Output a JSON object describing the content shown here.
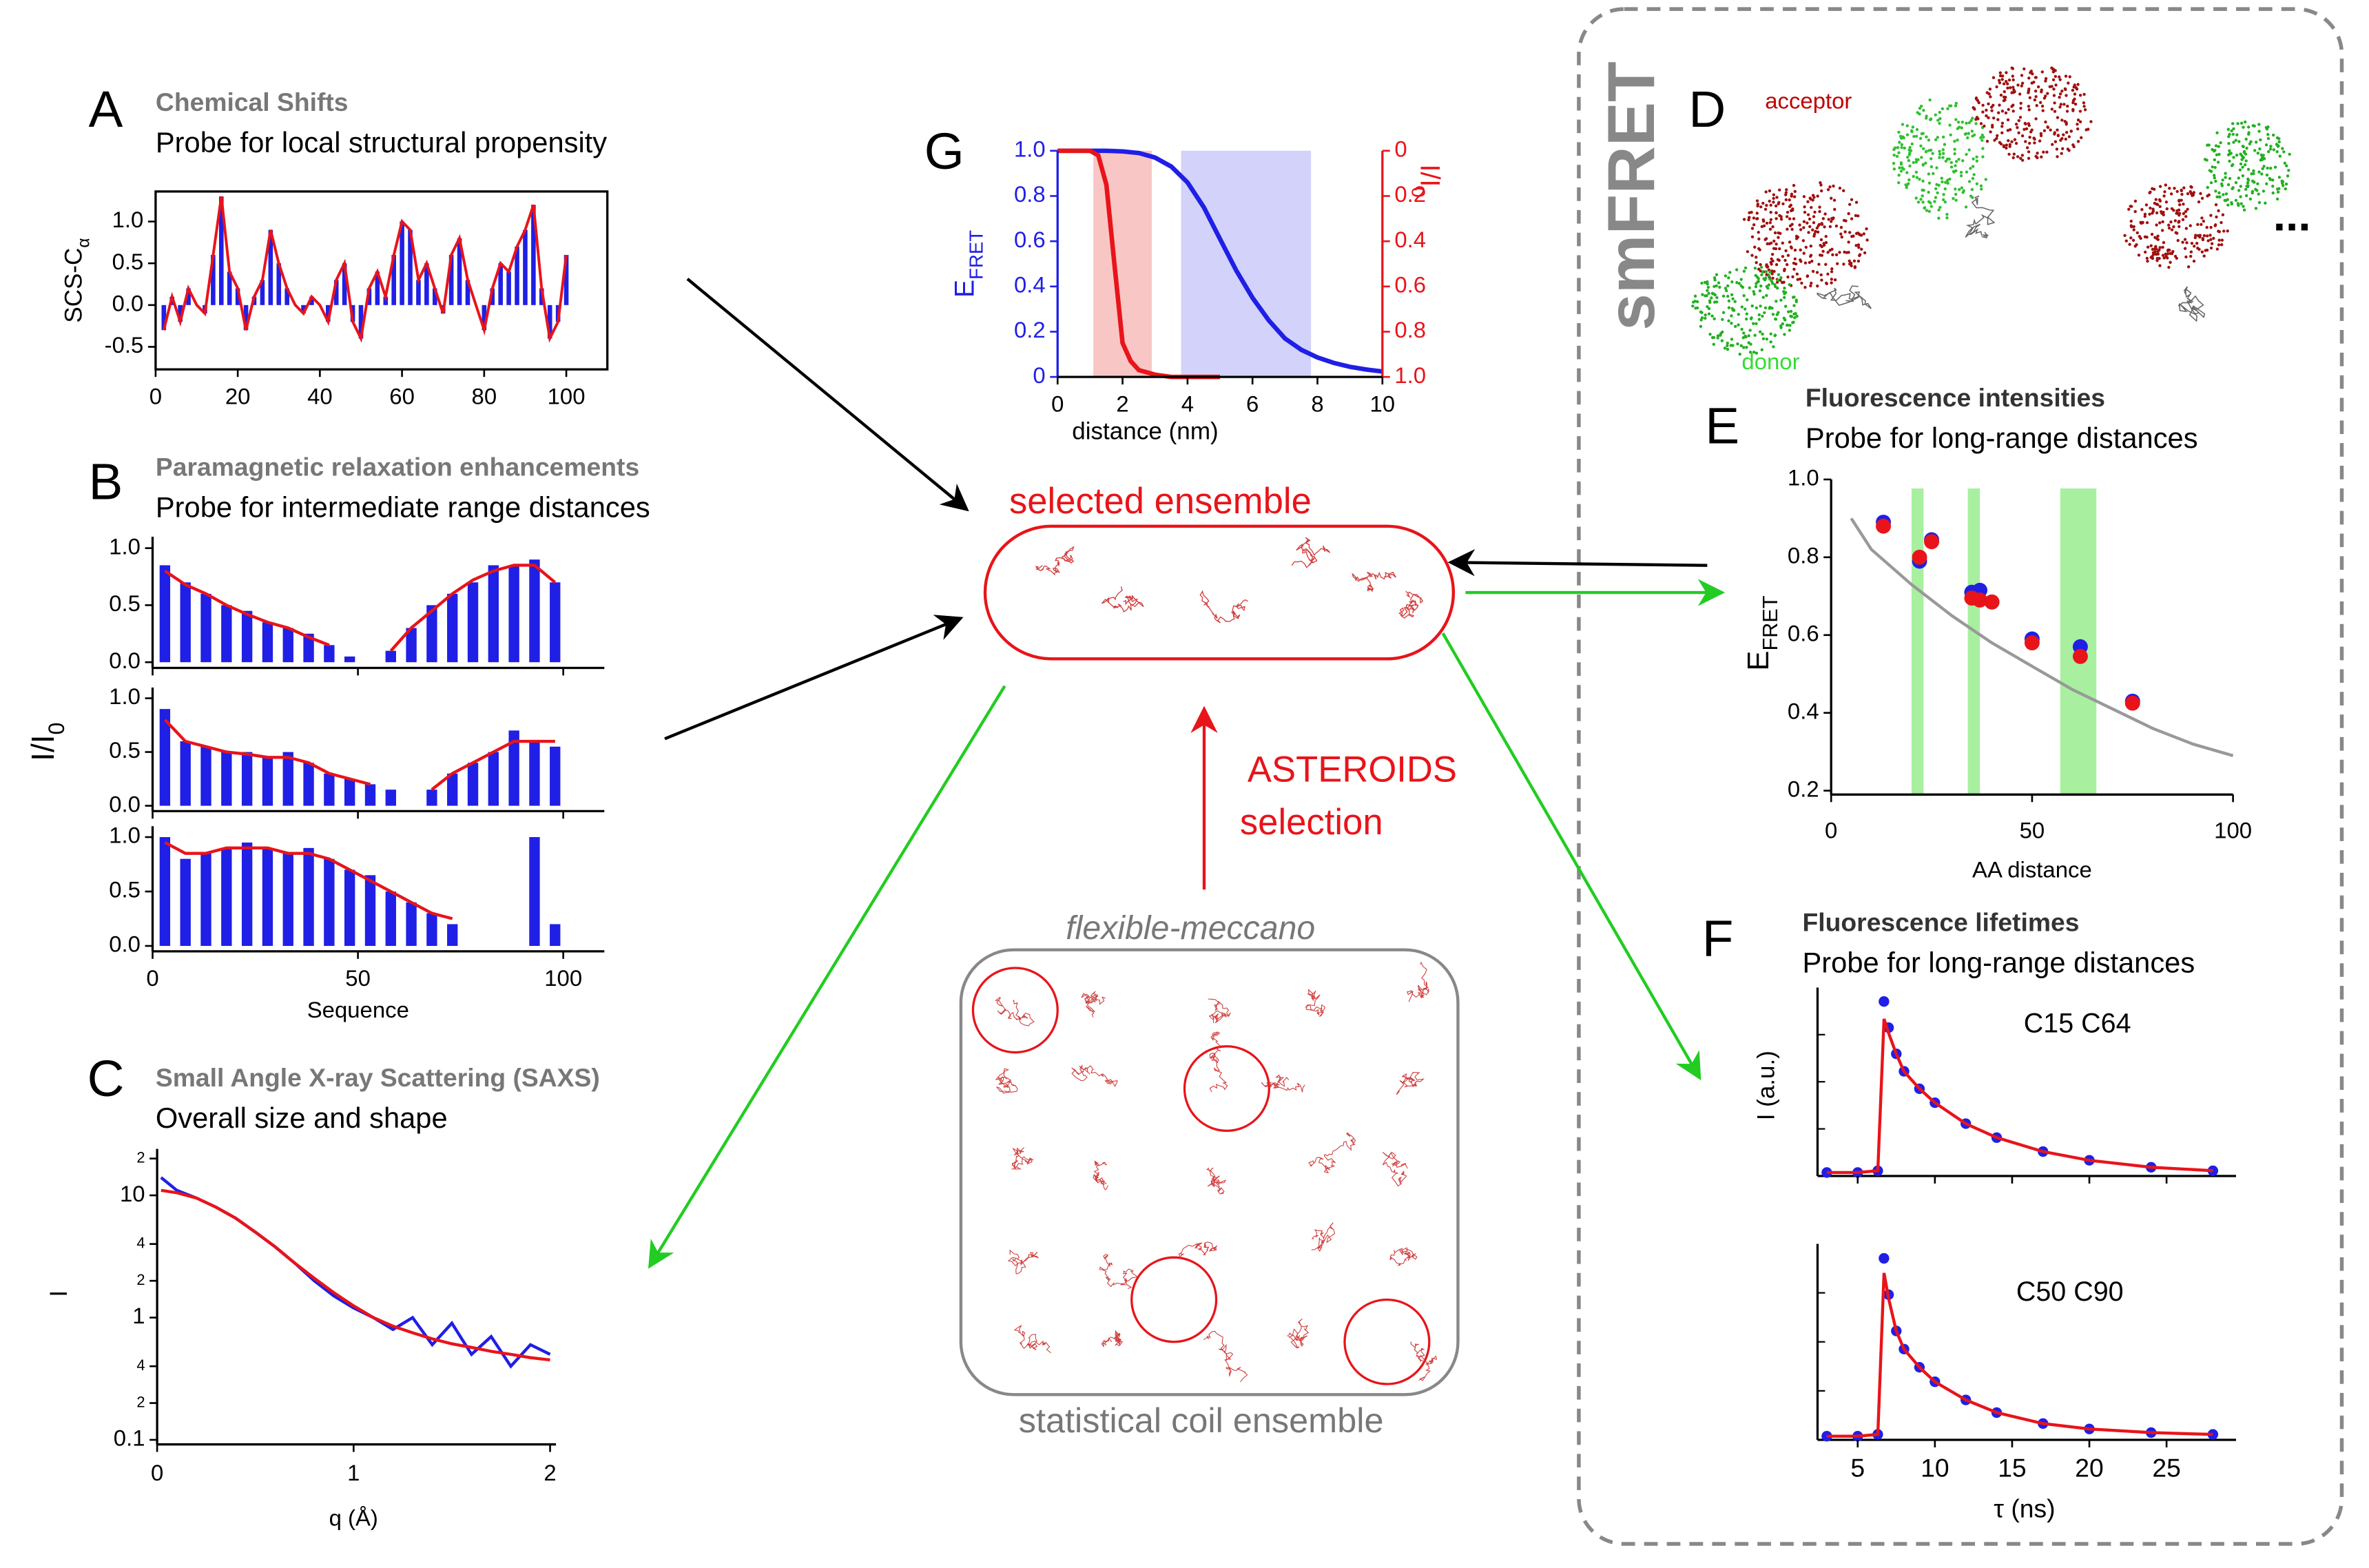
{
  "figure": {
    "A": {
      "letter": "A",
      "title": "Chemical Shifts",
      "subtitle": "Probe for local structural propensity",
      "ylabel": "SCS-C",
      "ylabel_sub": "α",
      "xlim": [
        0,
        110
      ],
      "ylim": [
        -0.77,
        1.36
      ],
      "xticks": [
        0,
        20,
        40,
        60,
        80,
        100
      ],
      "yticks": [
        {
          "value": -0.5,
          "label": "-0.5"
        },
        {
          "value": 0,
          "label": "0.0"
        },
        {
          "value": 0.5,
          "label": "0.5"
        },
        {
          "value": 1,
          "label": "1.0"
        }
      ],
      "x": [
        2,
        4,
        6,
        8,
        10,
        12,
        14,
        16,
        18,
        20,
        22,
        24,
        26,
        28,
        30,
        32,
        34,
        36,
        38,
        40,
        42,
        44,
        46,
        48,
        50,
        52,
        54,
        56,
        58,
        60,
        62,
        64,
        66,
        68,
        70,
        72,
        74,
        76,
        78,
        80,
        82,
        84,
        86,
        88,
        90,
        92,
        94,
        96,
        98,
        100
      ],
      "values": [
        -0.3,
        0.1,
        -0.2,
        0.2,
        0.0,
        -0.1,
        0.6,
        1.3,
        0.4,
        0.2,
        -0.3,
        0.1,
        0.3,
        0.9,
        0.5,
        0.2,
        0.0,
        -0.1,
        0.1,
        0.0,
        -0.2,
        0.3,
        0.5,
        -0.2,
        -0.4,
        0.2,
        0.4,
        0.1,
        0.6,
        1.0,
        0.9,
        0.3,
        0.5,
        0.2,
        -0.1,
        0.6,
        0.8,
        0.3,
        0.0,
        -0.3,
        0.2,
        0.5,
        0.4,
        0.7,
        0.9,
        1.2,
        0.2,
        -0.4,
        -0.2,
        0.6
      ],
      "bar_color": "#1f1fe6",
      "line_color": "#e8141a"
    },
    "B": {
      "letter": "B",
      "title": "Paramagnetic relaxation enhancements",
      "subtitle": "Probe for intermediate range distances",
      "ylabel": "I/I",
      "ylabel_sub": "0",
      "xlabel": "Sequence",
      "xlim": [
        0,
        110
      ],
      "ylim": [
        -0.05,
        1.1
      ],
      "xticks": [
        0,
        50,
        100
      ],
      "yticks": [
        {
          "value": 0,
          "label": "0.0"
        },
        {
          "value": 0.5,
          "label": "0.5"
        },
        {
          "value": 1,
          "label": "1.0"
        }
      ],
      "x": [
        3,
        8,
        13,
        18,
        23,
        28,
        33,
        38,
        43,
        48,
        53,
        58,
        63,
        68,
        73,
        78,
        83,
        88,
        93,
        98
      ],
      "subplots": [
        {
          "values": [
            0.85,
            0.7,
            0.6,
            0.5,
            0.45,
            0.35,
            0.3,
            0.25,
            0.15,
            0.05,
            null,
            0.1,
            0.3,
            0.5,
            0.6,
            0.7,
            0.85,
            0.85,
            0.9,
            0.7
          ],
          "fit": [
            0.8,
            0.68,
            0.6,
            0.5,
            0.42,
            0.35,
            0.3,
            0.22,
            0.15,
            null,
            null,
            0.1,
            0.3,
            0.45,
            0.6,
            0.72,
            0.8,
            0.85,
            0.85,
            0.7
          ]
        },
        {
          "values": [
            0.9,
            0.6,
            0.55,
            0.5,
            0.5,
            0.45,
            0.5,
            0.4,
            0.3,
            0.25,
            0.2,
            0.15,
            null,
            0.15,
            0.3,
            0.4,
            0.5,
            0.7,
            0.6,
            0.55
          ],
          "fit": [
            0.8,
            0.6,
            0.55,
            0.5,
            0.48,
            0.45,
            0.45,
            0.4,
            0.3,
            0.25,
            0.2,
            null,
            null,
            0.15,
            0.3,
            0.4,
            0.5,
            0.6,
            0.6,
            0.6
          ]
        },
        {
          "values": [
            1.0,
            0.8,
            0.85,
            0.9,
            0.95,
            0.9,
            0.85,
            0.9,
            0.8,
            0.7,
            0.65,
            0.5,
            0.4,
            0.3,
            0.2,
            null,
            null,
            null,
            1.0,
            0.2
          ],
          "fit": [
            0.95,
            0.85,
            0.85,
            0.9,
            0.9,
            0.9,
            0.85,
            0.85,
            0.8,
            0.7,
            0.6,
            0.5,
            0.4,
            0.3,
            0.25,
            null,
            null,
            null,
            null,
            null
          ]
        }
      ]
    },
    "C": {
      "letter": "C",
      "title": "Small Angle X-ray Scattering (SAXS)",
      "subtitle": "Overall size and shape",
      "ylabel": "I",
      "xlabel": "q (Å)",
      "xlim": [
        0,
        2.03
      ],
      "ylim": [
        0.1,
        24
      ],
      "ylog": true,
      "xticks": [
        0,
        1,
        2
      ],
      "yticks": [
        0.1,
        {
          "value": 0.2,
          "label": "2"
        },
        {
          "value": 0.4,
          "label": "4"
        },
        1,
        {
          "value": 2,
          "label": "2"
        },
        {
          "value": 4,
          "label": "4"
        },
        10,
        {
          "value": 20,
          "label": "2"
        }
      ],
      "x": [
        0.02,
        0.1,
        0.2,
        0.3,
        0.4,
        0.5,
        0.6,
        0.7,
        0.8,
        0.9,
        1.0,
        1.1,
        1.2,
        1.3,
        1.4,
        1.5,
        1.6,
        1.7,
        1.8,
        1.9,
        2.0
      ],
      "values": [
        14,
        11,
        9.5,
        8,
        6.5,
        5,
        3.8,
        2.8,
        2.0,
        1.5,
        1.2,
        1.0,
        0.8,
        1.0,
        0.6,
        0.9,
        0.5,
        0.7,
        0.4,
        0.6,
        0.5
      ],
      "fit": [
        11,
        10.5,
        9.5,
        8,
        6.5,
        5,
        3.8,
        2.8,
        2.1,
        1.6,
        1.25,
        1.0,
        0.85,
        0.75,
        0.67,
        0.61,
        0.57,
        0.53,
        0.5,
        0.47,
        0.45
      ]
    },
    "G": {
      "letter": "G",
      "xlabel": "distance (nm)",
      "ylabel": "E",
      "ylabel_sub": "FRET",
      "y2label": "I/I",
      "y2label_sub": "0",
      "xlim": [
        0,
        10
      ],
      "ylim": [
        0,
        1
      ],
      "y2lim": [
        1,
        0
      ],
      "xticks": [
        0,
        2,
        4,
        6,
        8,
        10
      ],
      "yticks": [
        0,
        0.2,
        0.4,
        0.6,
        0.8,
        {
          "value": 1,
          "label": "1.0"
        }
      ],
      "y2ticks": [
        0,
        0.2,
        0.4,
        0.6,
        0.8,
        {
          "value": 1,
          "label": "1.0"
        }
      ],
      "bands": [
        {
          "from": 1.1,
          "to": 2.9,
          "color": "#f9c6c6"
        },
        {
          "from": 3.8,
          "to": 7.8,
          "color": "#d2d2fa"
        }
      ],
      "series": [
        {
          "color": "#1f1fe6",
          "x": [
            0,
            0.5,
            1,
            1.5,
            2,
            2.5,
            3,
            3.5,
            4,
            4.5,
            5,
            5.5,
            6,
            6.5,
            7,
            7.5,
            8,
            8.5,
            9,
            9.5,
            10
          ],
          "values": [
            1,
            1,
            1,
            1,
            0.997,
            0.99,
            0.97,
            0.93,
            0.86,
            0.75,
            0.61,
            0.47,
            0.35,
            0.25,
            0.17,
            0.12,
            0.086,
            0.062,
            0.045,
            0.033,
            0.024
          ]
        },
        {
          "color": "#e8141a",
          "axis": "y2",
          "x": [
            0,
            0.5,
            1,
            1.25,
            1.5,
            1.75,
            2,
            2.25,
            2.5,
            3,
            3.5,
            4,
            4.5,
            5
          ],
          "values": [
            0,
            0,
            0,
            0.02,
            0.15,
            0.5,
            0.85,
            0.93,
            0.97,
            0.99,
            1,
            1,
            1,
            1
          ]
        }
      ]
    },
    "center": {
      "selected": "selected ensemble",
      "method": "ASTEROIDS",
      "method2": "selection",
      "pool_title": "flexible-meccano",
      "pool": "statistical coil ensemble"
    },
    "D": {
      "group": "smFRET",
      "letter": "D",
      "acceptor": "acceptor",
      "donor": "donor",
      "more": "..."
    },
    "E": {
      "letter": "E",
      "title": "Fluorescence intensities",
      "subtitle": "Probe for long-range distances",
      "ylabel": "E",
      "ylabel_sub": "FRET",
      "xlabel": "AA distance",
      "xlim": [
        0,
        100
      ],
      "ylim": [
        0.19,
        1.0
      ],
      "xticks": [
        0,
        50,
        100
      ],
      "yticks": [
        0.2,
        0.4,
        0.6,
        0.8,
        {
          "value": 1,
          "label": "1.0"
        }
      ],
      "bands": [
        [
          20,
          23
        ],
        [
          34,
          37
        ],
        [
          57,
          66
        ]
      ],
      "x": [
        13,
        22,
        25,
        35,
        37,
        40,
        50,
        62,
        75
      ],
      "series": [
        {
          "color": "#1f1fe6",
          "values": [
            0.89,
            0.79,
            0.845,
            0.71,
            0.715,
            0.685,
            0.59,
            0.57,
            0.43
          ]
        },
        {
          "color": "#e8141a",
          "values": [
            0.88,
            0.8,
            0.84,
            0.695,
            0.69,
            0.685,
            0.58,
            0.545,
            0.425
          ]
        }
      ],
      "model": {
        "color": "#999999",
        "x": [
          5,
          10,
          20,
          30,
          40,
          50,
          60,
          70,
          80,
          90,
          100
        ],
        "values": [
          0.9,
          0.82,
          0.73,
          0.65,
          0.58,
          0.52,
          0.46,
          0.41,
          0.36,
          0.32,
          0.29
        ]
      }
    },
    "F": {
      "letter": "F",
      "title": "Fluorescence lifetimes",
      "subtitle": "Probe for long-range distances",
      "ylabel": "I (a.u.)",
      "xlabel": "τ (ns)",
      "xlim": [
        2.4,
        29.5
      ],
      "ylim": [
        0,
        1.08
      ],
      "xticks": [
        5,
        10,
        15,
        20,
        25
      ],
      "x": [
        3,
        5,
        6.3,
        6.7,
        7,
        7.5,
        8,
        9,
        10,
        12,
        14,
        17,
        20,
        24,
        28
      ],
      "traces": [
        {
          "name": "C15 C64",
          "values": [
            0.02,
            0.02,
            0.03,
            1.0,
            0.85,
            0.7,
            0.6,
            0.5,
            0.42,
            0.3,
            0.22,
            0.14,
            0.09,
            0.05,
            0.03
          ],
          "fit": [
            0.02,
            0.02,
            0.03,
            0.9,
            0.82,
            0.7,
            0.6,
            0.5,
            0.42,
            0.3,
            0.22,
            0.14,
            0.09,
            0.05,
            0.03
          ]
        },
        {
          "name": "C50 C90",
          "values": [
            0.02,
            0.02,
            0.03,
            1.0,
            0.8,
            0.6,
            0.5,
            0.4,
            0.32,
            0.22,
            0.15,
            0.09,
            0.06,
            0.04,
            0.03
          ],
          "fit": [
            0.02,
            0.02,
            0.03,
            0.92,
            0.78,
            0.6,
            0.5,
            0.4,
            0.32,
            0.22,
            0.15,
            0.09,
            0.06,
            0.04,
            0.03
          ]
        }
      ]
    }
  }
}
